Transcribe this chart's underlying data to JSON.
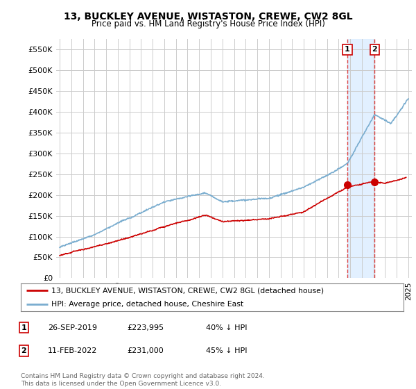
{
  "title": "13, BUCKLEY AVENUE, WISTASTON, CREWE, CW2 8GL",
  "subtitle": "Price paid vs. HM Land Registry's House Price Index (HPI)",
  "hpi_color": "#7aadcf",
  "price_color": "#cc0000",
  "vline_color": "#dd4444",
  "bg_color": "#ffffff",
  "plot_bg_color": "#ffffff",
  "grid_color": "#cccccc",
  "ylim": [
    0,
    575000
  ],
  "yticks": [
    0,
    50000,
    100000,
    150000,
    200000,
    250000,
    300000,
    350000,
    400000,
    450000,
    500000,
    550000
  ],
  "ytick_labels": [
    "£0",
    "£50K",
    "£100K",
    "£150K",
    "£200K",
    "£250K",
    "£300K",
    "£350K",
    "£400K",
    "£450K",
    "£500K",
    "£550K"
  ],
  "sale1_year": 2019.75,
  "sale1_price": 223995,
  "sale2_year": 2022.1,
  "sale2_price": 231000,
  "highlight_bg": "#ddeeff",
  "legend_entries": [
    "13, BUCKLEY AVENUE, WISTASTON, CREWE, CW2 8GL (detached house)",
    "HPI: Average price, detached house, Cheshire East"
  ],
  "table_rows": [
    [
      "1",
      "26-SEP-2019",
      "£223,995",
      "40% ↓ HPI"
    ],
    [
      "2",
      "11-FEB-2022",
      "£231,000",
      "45% ↓ HPI"
    ]
  ],
  "footer": "Contains HM Land Registry data © Crown copyright and database right 2024.\nThis data is licensed under the Open Government Licence v3.0."
}
